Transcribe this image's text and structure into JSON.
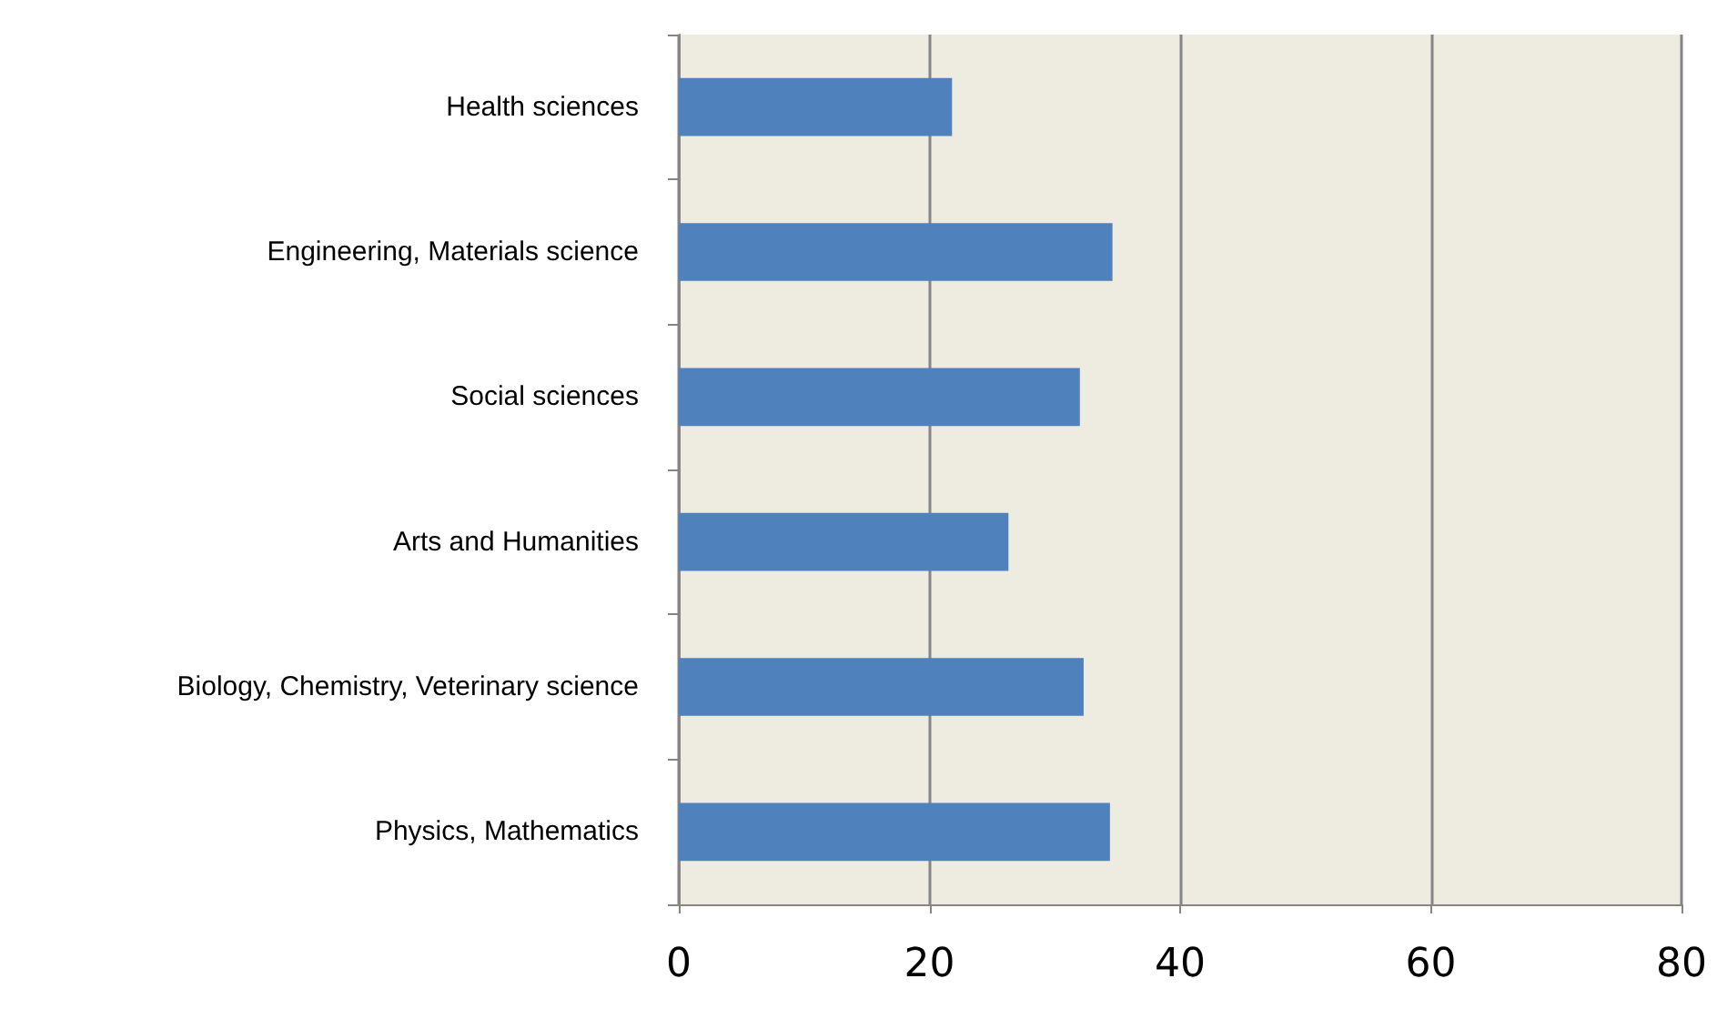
{
  "chart_data": {
    "type": "bar",
    "orientation": "horizontal",
    "categories": [
      "Health sciences",
      "Engineering, Materials science",
      "Social sciences",
      "Arts and Humanities",
      "Biology, Chemistry, Veterinary science",
      "Physics, Mathematics"
    ],
    "values": [
      21.8,
      34.6,
      32.0,
      26.3,
      32.3,
      34.4
    ],
    "color": "#4f81bd",
    "xlim": [
      0,
      80
    ],
    "xticks": [
      0,
      20,
      40,
      60,
      80
    ],
    "grid": "x"
  }
}
